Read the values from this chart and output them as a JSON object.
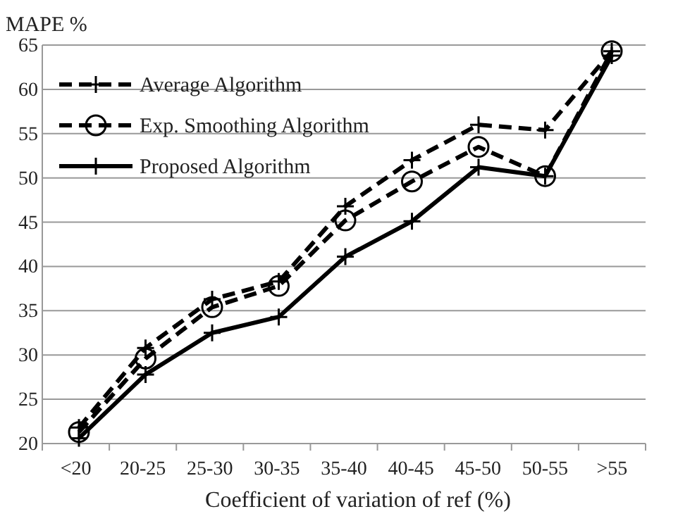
{
  "chart_data": {
    "type": "line",
    "ylabel": "MAPE %",
    "xlabel": "Coefficient of variation of ref (%)",
    "categories": [
      "<20",
      "20-25",
      "25-30",
      "30-35",
      "35-40",
      "40-45",
      "45-50",
      "50-55",
      ">55"
    ],
    "ylim": [
      20,
      65
    ],
    "yticks": [
      20,
      25,
      30,
      35,
      40,
      45,
      50,
      55,
      60,
      65
    ],
    "grid": "y",
    "legend": "top left",
    "series": [
      {
        "name": "Average Algorithm",
        "color": "#000000",
        "marker": "cross",
        "line_style": "dashed",
        "values": [
          21.8,
          30.8,
          36.3,
          38.3,
          46.8,
          52,
          56,
          55.4,
          64.3
        ]
      },
      {
        "name": "Exp. Smoothing Algorithm",
        "color": "#000000",
        "marker": "circle",
        "line_style": "dashed",
        "values": [
          21.3,
          29.6,
          35.4,
          37.8,
          45.2,
          49.6,
          53.5,
          50.2,
          64.3
        ]
      },
      {
        "name": "Proposed Algorithm",
        "color": "#000000",
        "marker": "cross",
        "line_style": "solid",
        "values": [
          20.6,
          27.8,
          32.5,
          34.3,
          41.1,
          45.1,
          51.2,
          50.2,
          63.8
        ]
      }
    ]
  }
}
